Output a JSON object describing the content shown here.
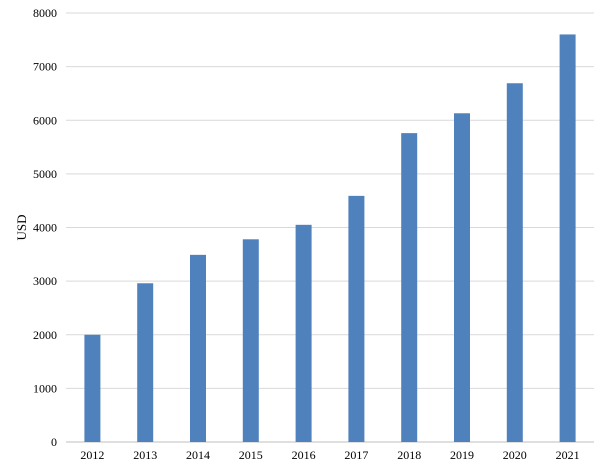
{
  "chart_data": {
    "type": "bar",
    "title": "",
    "xlabel": "",
    "ylabel": "USD",
    "categories": [
      "2012",
      "2013",
      "2014",
      "2015",
      "2016",
      "2017",
      "2018",
      "2019",
      "2020",
      "2021"
    ],
    "values": [
      2000,
      2960,
      3490,
      3780,
      4050,
      4590,
      5760,
      6130,
      6690,
      7600
    ],
    "ylim": [
      0,
      8000
    ],
    "yticks": [
      0,
      1000,
      2000,
      3000,
      4000,
      5000,
      6000,
      7000,
      8000
    ],
    "grid": true,
    "legend": "none",
    "bar_color": "#4f81bd"
  }
}
